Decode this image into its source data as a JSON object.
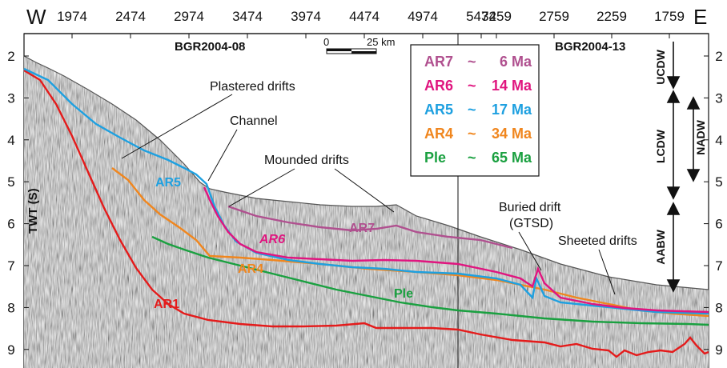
{
  "corners": {
    "west": "W",
    "east": "E"
  },
  "top_ticks_left": [
    "1974",
    "2474",
    "2974",
    "3474",
    "3974",
    "4474",
    "4974",
    "5474"
  ],
  "top_ticks_right": [
    "3259",
    "2759",
    "2259",
    "1759"
  ],
  "depth_ticks": [
    "2",
    "3",
    "4",
    "5",
    "6",
    "7",
    "8",
    "9"
  ],
  "y_axis_label": "TWT (S)",
  "profiles": {
    "left": "BGR2004-08",
    "right": "BGR2004-13"
  },
  "scale_bar": {
    "zero": "0",
    "end": "25 km"
  },
  "legend": [
    {
      "name": "AR7",
      "sep": "~",
      "age": "6 Ma",
      "color": "#b0508f"
    },
    {
      "name": "AR6",
      "sep": "~",
      "age": "14 Ma",
      "color": "#e0157f"
    },
    {
      "name": "AR5",
      "sep": "~",
      "age": "17 Ma",
      "color": "#1ea0e0"
    },
    {
      "name": "AR4",
      "sep": "~",
      "age": "34 Ma",
      "color": "#f0861e"
    },
    {
      "name": "Ple",
      "sep": "~",
      "age": "65 Ma",
      "color": "#1aa040"
    }
  ],
  "horizon_labels": {
    "AR1": "AR1",
    "AR4": "AR4",
    "AR5": "AR5",
    "AR6": "AR6",
    "AR7": "AR7",
    "Ple": "Ple"
  },
  "horizon_colors": {
    "AR1": "#e41b1b",
    "AR4": "#f0861e",
    "AR5": "#1ea0e0",
    "AR6": "#e0157f",
    "AR7": "#b0508f",
    "Ple": "#1aa040"
  },
  "annotations": {
    "plastered": "Plastered drifts",
    "channel": "Channel",
    "mounded": "Mounded drifts",
    "buried_line1": "Buried drift",
    "buried_line2": "(GTSD)",
    "sheeted": "Sheeted drifts"
  },
  "water_masses": [
    "UCDW",
    "LCDW",
    "NADW",
    "AABW"
  ]
}
